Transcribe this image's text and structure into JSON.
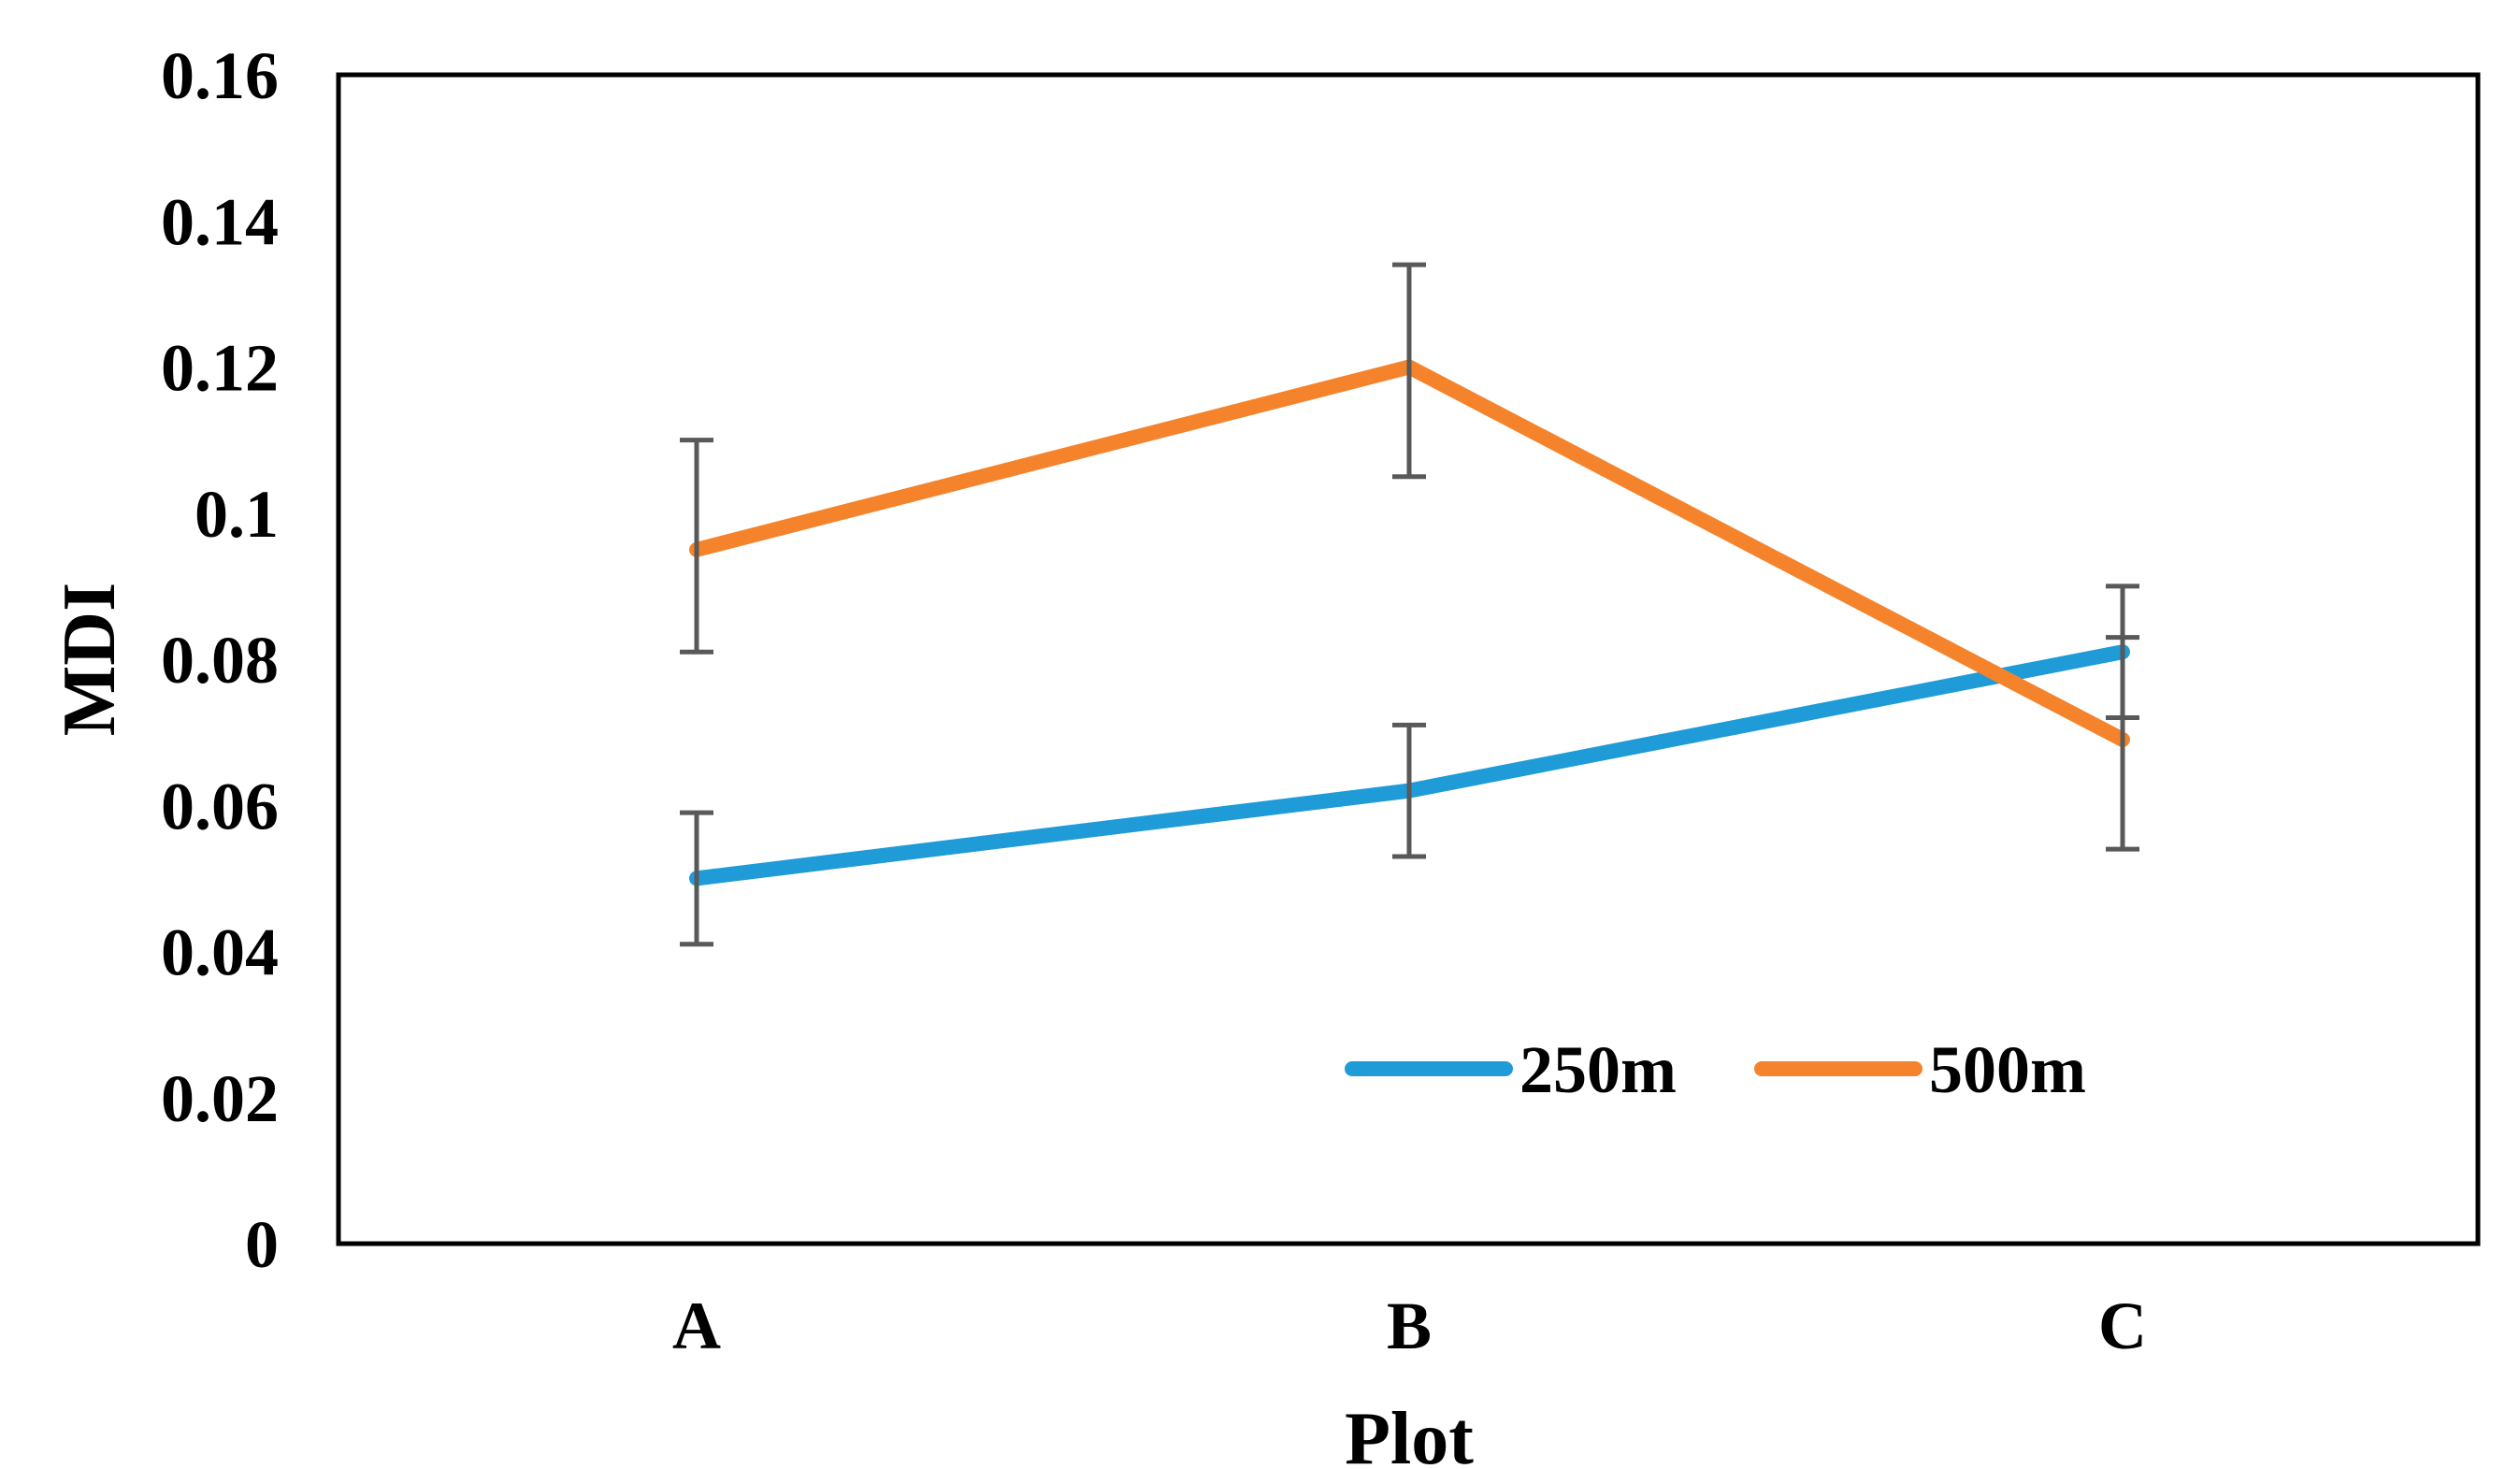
{
  "chart_data": {
    "type": "line",
    "title": "",
    "xlabel": "Plot",
    "ylabel": "MDI",
    "categories": [
      "A",
      "B",
      "C"
    ],
    "ylim": [
      0,
      0.16
    ],
    "yticks": [
      "0",
      "0.02",
      "0.04",
      "0.06",
      "0.08",
      "0.1",
      "0.12",
      "0.14",
      "0.16"
    ],
    "grid": false,
    "legend_position": "bottom-right",
    "series": [
      {
        "name": "250m",
        "color": "#1f9bd7",
        "values": [
          0.05,
          0.062,
          0.081
        ],
        "error_low": [
          0.041,
          0.053,
          0.072
        ],
        "error_high": [
          0.059,
          0.071,
          0.09
        ]
      },
      {
        "name": "500m",
        "color": "#f5832b",
        "values": [
          0.095,
          0.12,
          0.069
        ],
        "error_low": [
          0.081,
          0.105,
          0.054
        ],
        "error_high": [
          0.11,
          0.134,
          0.083
        ]
      }
    ],
    "error_bar_color": "#595959"
  }
}
